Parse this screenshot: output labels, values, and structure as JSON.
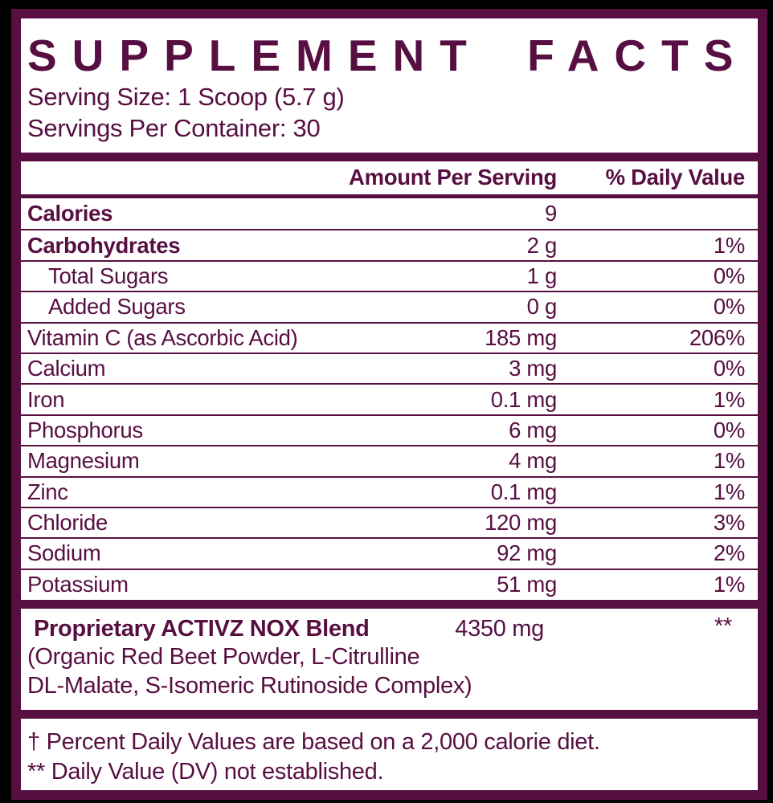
{
  "label": {
    "title": "SUPPLEMENT FACTS",
    "serving_size": "Serving Size: 1 Scoop (5.7 g)",
    "servings_per_container": "Servings Per Container: 30",
    "columns": {
      "amount": "Amount Per Serving",
      "daily_value": "% Daily Value"
    },
    "nutrients": [
      {
        "name": "Calories",
        "amount": "9",
        "dv": "",
        "bold": true,
        "indent": false
      },
      {
        "name": "Carbohydrates",
        "amount": "2 g",
        "dv": "1%",
        "bold": true,
        "indent": false
      },
      {
        "name": "Total Sugars",
        "amount": "1 g",
        "dv": "0%",
        "bold": false,
        "indent": true
      },
      {
        "name": "Added Sugars",
        "amount": "0 g",
        "dv": "0%",
        "bold": false,
        "indent": true
      },
      {
        "name": "Vitamin C (as Ascorbic Acid)",
        "amount": "185 mg",
        "dv": "206%",
        "bold": false,
        "indent": false
      },
      {
        "name": "Calcium",
        "amount": "3 mg",
        "dv": "0%",
        "bold": false,
        "indent": false
      },
      {
        "name": "Iron",
        "amount": "0.1 mg",
        "dv": "1%",
        "bold": false,
        "indent": false
      },
      {
        "name": "Phosphorus",
        "amount": "6 mg",
        "dv": "0%",
        "bold": false,
        "indent": false
      },
      {
        "name": "Magnesium",
        "amount": "4 mg",
        "dv": "1%",
        "bold": false,
        "indent": false
      },
      {
        "name": "Zinc",
        "amount": "0.1 mg",
        "dv": "1%",
        "bold": false,
        "indent": false
      },
      {
        "name": "Chloride",
        "amount": "120 mg",
        "dv": "3%",
        "bold": false,
        "indent": false
      },
      {
        "name": "Sodium",
        "amount": "92 mg",
        "dv": "2%",
        "bold": false,
        "indent": false
      },
      {
        "name": "Potassium",
        "amount": "51 mg",
        "dv": "1%",
        "bold": false,
        "indent": false
      }
    ],
    "blend": {
      "name": "Proprietary ACTIVZ NOX Blend",
      "amount": "4350 mg",
      "dv": "**",
      "description_line1": "(Organic Red Beet Powder, L-Citrulline",
      "description_line2": "DL-Malate, S-Isomeric Rutinoside Complex)"
    },
    "footnotes": [
      "† Percent Daily Values are based on a 2,000 calorie diet.",
      "** Daily Value (DV) not established."
    ],
    "colors": {
      "maroon": "#570f42",
      "page_background": "#000000",
      "paper": "#ffffff"
    }
  }
}
